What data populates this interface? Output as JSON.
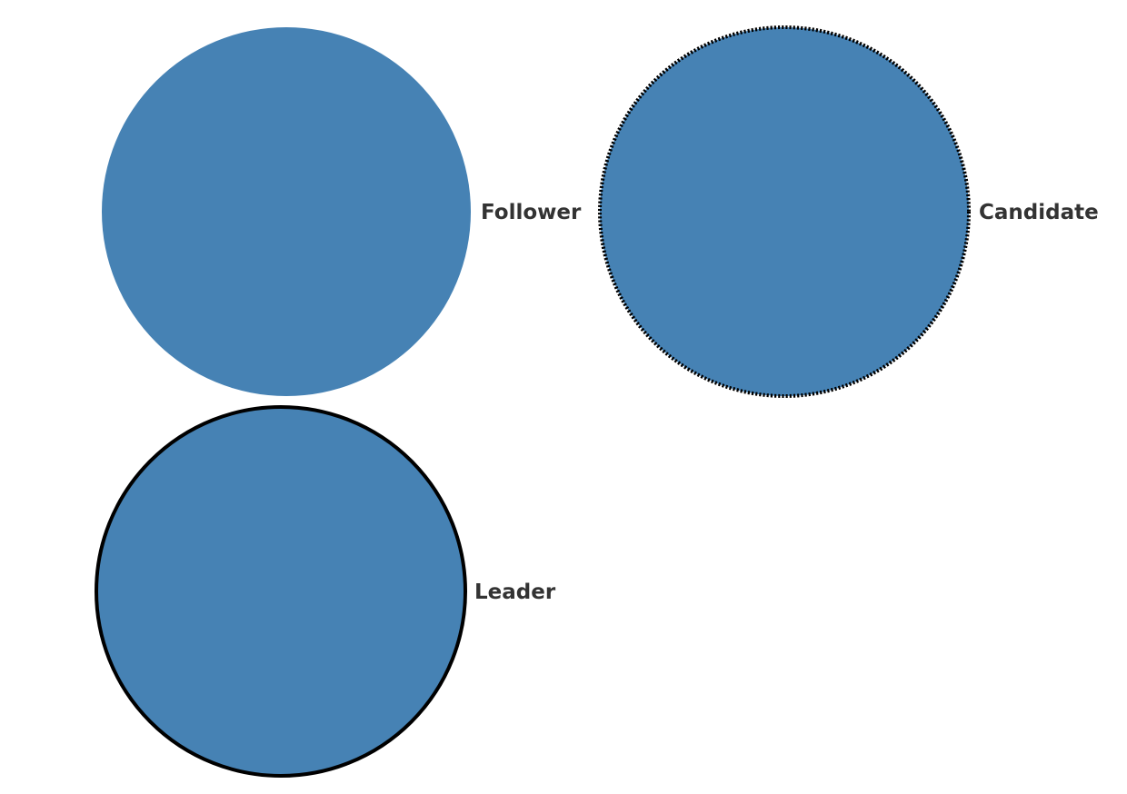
{
  "diagram": {
    "node_fill": "#4682b4",
    "border_color": "#000000",
    "label_color": "#333333",
    "nodes": [
      {
        "id": "follower",
        "label": "Follower",
        "border": "none"
      },
      {
        "id": "candidate",
        "label": "Candidate",
        "border": "dotted"
      },
      {
        "id": "leader",
        "label": "Leader",
        "border": "solid"
      }
    ]
  }
}
